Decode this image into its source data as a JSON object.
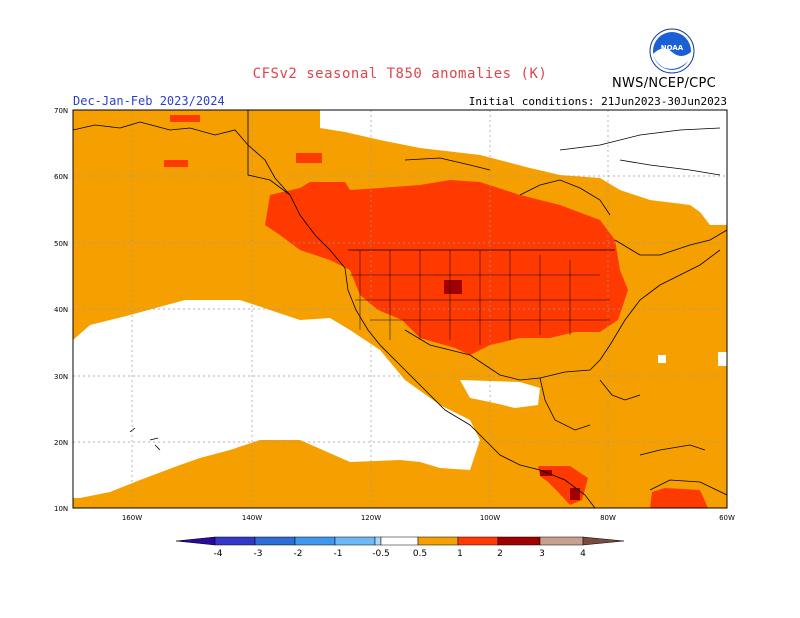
{
  "header": {
    "title": "CFSv2 seasonal T850 anomalies (K)",
    "season": "Dec-Jan-Feb 2023/2024",
    "initial_conditions": "Initial conditions: 21Jun2023-30Jun2023",
    "agency": "NWS/NCEP/CPC",
    "logo_text": "NOAA"
  },
  "map": {
    "lat_labels": [
      "70N",
      "60N",
      "50N",
      "40N",
      "30N",
      "20N",
      "10N"
    ],
    "lon_labels": [
      "160W",
      "140W",
      "120W",
      "100W",
      "80W",
      "60W"
    ],
    "colors": {
      "warm_05_1": "#f5a000",
      "warm_1_2": "#ff3a00",
      "warm_2_3": "#a00000",
      "neutral": "#ffffff"
    }
  },
  "colorbar": {
    "ticks": [
      "-4",
      "-3",
      "-2",
      "-1",
      "-0.5",
      "0.5",
      "1",
      "2",
      "3",
      "4"
    ],
    "colors": [
      "#2a0a9a",
      "#3338c8",
      "#2c6ed6",
      "#3f98ee",
      "#6eb8f6",
      "#a6d8ff",
      "#ffffff",
      "#f5a000",
      "#ff3a00",
      "#a00000",
      "#c8a090",
      "#7a4a40"
    ]
  }
}
